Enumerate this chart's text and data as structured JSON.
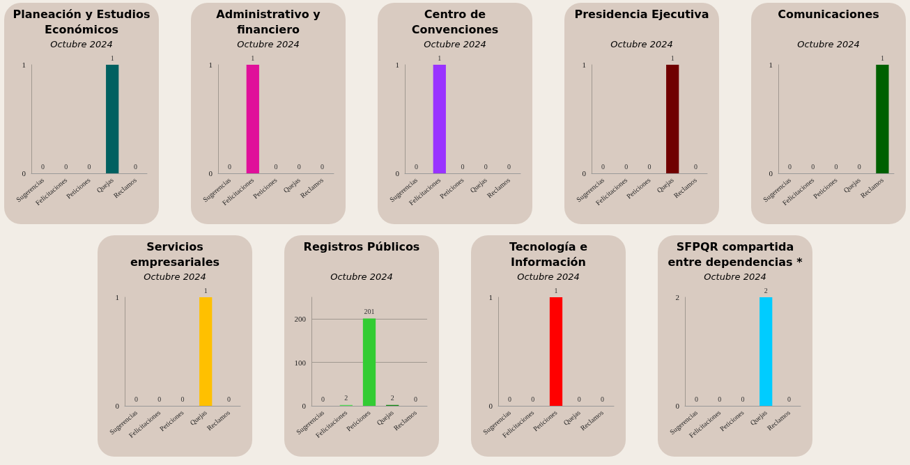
{
  "chart_data": [
    {
      "type": "bar",
      "title": "Planeación y Estudios Económicos",
      "subtitle": "Octubre 2024",
      "categories": [
        "Sugerencias",
        "Felicitaciones",
        "Peticiones",
        "Quejas",
        "Reclamos"
      ],
      "values": [
        0,
        0,
        0,
        1,
        0
      ],
      "colors": [
        "#2f8f3f",
        "#3a8a6a",
        "#1a8a8a",
        "#006060",
        "#1a3a6a"
      ],
      "ylim": [
        0,
        1
      ],
      "yticks": [
        0,
        1
      ],
      "data_labels": true
    },
    {
      "type": "bar",
      "title": "Administrativo y financiero",
      "subtitle": "Octubre 2024",
      "categories": [
        "Sugerencias",
        "Felicitaciones",
        "Peticiones",
        "Quejas",
        "Reclamos"
      ],
      "values": [
        0,
        1,
        0,
        0,
        0
      ],
      "colors": [
        "#c0106a",
        "#e0109a",
        "#c010a0",
        "#b010b0",
        "#9a10c0"
      ],
      "ylim": [
        0,
        1
      ],
      "yticks": [
        0,
        1
      ],
      "data_labels": true
    },
    {
      "type": "bar",
      "title": "Centro de Convenciones",
      "subtitle": "Octubre 2024",
      "categories": [
        "Sugerencias",
        "Felicitaciones",
        "Peticiones",
        "Quejas",
        "Reclamos"
      ],
      "values": [
        0,
        1,
        0,
        0,
        0
      ],
      "colors": [
        "#6a10d0",
        "#9933ff",
        "#2a30b0",
        "#2030c0",
        "#1010a0"
      ],
      "ylim": [
        0,
        1
      ],
      "yticks": [
        0,
        1
      ],
      "data_labels": true
    },
    {
      "type": "bar",
      "title": "Presidencia Ejecutiva",
      "subtitle": "Octubre 2024",
      "categories": [
        "Sugerencias",
        "Felicitaciones",
        "Peticiones",
        "Quejas",
        "Reclamos"
      ],
      "values": [
        0,
        0,
        0,
        1,
        0
      ],
      "colors": [
        "#c04010",
        "#a03010",
        "#800010",
        "#700000",
        "#900020"
      ],
      "ylim": [
        0,
        1
      ],
      "yticks": [
        0,
        1
      ],
      "data_labels": true
    },
    {
      "type": "bar",
      "title": "Comunicaciones",
      "subtitle": "Octubre 2024",
      "categories": [
        "Sugerencias",
        "Felicitaciones",
        "Peticiones",
        "Quejas",
        "Reclamos"
      ],
      "values": [
        0,
        0,
        0,
        0,
        1
      ],
      "colors": [
        "#88b020",
        "#4a8a10",
        "#208a20",
        "#0a8a2a",
        "#006000"
      ],
      "ylim": [
        0,
        1
      ],
      "yticks": [
        0,
        1
      ],
      "data_labels": true
    },
    {
      "type": "bar",
      "title": "Servicios empresariales",
      "subtitle": "Octubre 2024",
      "categories": [
        "Sugerencias",
        "Felicitaciones",
        "Peticiones",
        "Quejas",
        "Reclamos"
      ],
      "values": [
        0,
        0,
        0,
        1,
        0
      ],
      "colors": [
        "#d8c070",
        "#c8a040",
        "#a08000",
        "#ffc000",
        "#806000"
      ],
      "ylim": [
        0,
        1
      ],
      "yticks": [
        0,
        1
      ],
      "data_labels": true
    },
    {
      "type": "bar",
      "title": "Registros Públicos",
      "subtitle": "Octubre 2024",
      "categories": [
        "Sugerencias",
        "Felicitaciones",
        "Peticiones",
        "Quejas",
        "Reclamos"
      ],
      "values": [
        0,
        2,
        201,
        2,
        0
      ],
      "colors": [
        "#66dd66",
        "#55dd55",
        "#33cc33",
        "#118811",
        "#004000"
      ],
      "ylim": [
        0,
        250
      ],
      "yticks": [
        0,
        100,
        200
      ],
      "grid": true,
      "data_labels": true
    },
    {
      "type": "bar",
      "title": "Tecnología e Información",
      "subtitle": "Octubre 2024",
      "categories": [
        "Sugerencias",
        "Felicitaciones",
        "Peticiones",
        "Quejas",
        "Reclamos"
      ],
      "values": [
        0,
        0,
        1,
        0,
        0
      ],
      "colors": [
        "#c06000",
        "#e04010",
        "#ff0000",
        "#c00020",
        "#800030"
      ],
      "ylim": [
        0,
        1
      ],
      "yticks": [
        0,
        1
      ],
      "data_labels": true
    },
    {
      "type": "bar",
      "title": "SFPQR compartida entre dependencias *",
      "subtitle": "Octubre 2024",
      "categories": [
        "Sugerencias",
        "Felicitaciones",
        "Peticiones",
        "Quejas",
        "Reclamos"
      ],
      "values": [
        0,
        0,
        0,
        2,
        0
      ],
      "colors": [
        "#2a80d0",
        "#2a90d8",
        "#20a0e0",
        "#00ccff",
        "#2050c0"
      ],
      "ylim": [
        0,
        2
      ],
      "yticks": [
        0,
        2
      ],
      "data_labels": true
    }
  ]
}
